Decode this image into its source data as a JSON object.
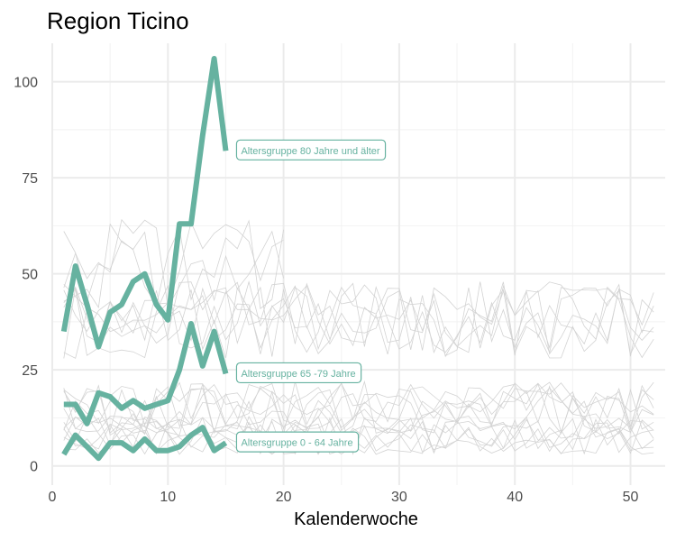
{
  "chart_data": {
    "type": "line",
    "title": "Region Ticino",
    "xlabel": "Kalenderwoche",
    "ylabel": "",
    "xlim": [
      0,
      53
    ],
    "ylim": [
      -5,
      110
    ],
    "xticks": [
      0,
      10,
      20,
      30,
      40,
      50
    ],
    "yticks": [
      0,
      25,
      50,
      75,
      100
    ],
    "grid": true,
    "legend": "none",
    "highlight_color": "#66b2a0",
    "background_color": "#d3d3d3",
    "highlighted_series": [
      {
        "name": "Altersgruppe 80 Jahre und älter",
        "x": [
          1,
          2,
          3,
          4,
          5,
          6,
          7,
          8,
          9,
          10,
          11,
          12,
          13,
          14,
          15
        ],
        "values": [
          35,
          52,
          42,
          31,
          40,
          42,
          48,
          50,
          42,
          38,
          63,
          63,
          86,
          106,
          82
        ]
      },
      {
        "name": "Altersgruppe 65 -79 Jahre",
        "x": [
          1,
          2,
          3,
          4,
          5,
          6,
          7,
          8,
          9,
          10,
          11,
          12,
          13,
          14,
          15
        ],
        "values": [
          16,
          16,
          11,
          19,
          18,
          15,
          17,
          15,
          16,
          17,
          25,
          37,
          26,
          35,
          24
        ]
      },
      {
        "name": "Altersgruppe 0 - 64 Jahre",
        "x": [
          1,
          2,
          3,
          4,
          5,
          6,
          7,
          8,
          9,
          10,
          11,
          12,
          13,
          14,
          15
        ],
        "values": [
          3,
          8,
          5,
          2,
          6,
          6,
          4,
          7,
          4,
          4,
          5,
          8,
          10,
          4,
          6
        ]
      }
    ],
    "background_bands": [
      {
        "x": [
          1,
          52
        ],
        "center": 38,
        "spread": 10
      },
      {
        "x": [
          1,
          52
        ],
        "center": 15,
        "spread": 7
      },
      {
        "x": [
          1,
          52
        ],
        "center": 8,
        "spread": 5
      }
    ]
  }
}
